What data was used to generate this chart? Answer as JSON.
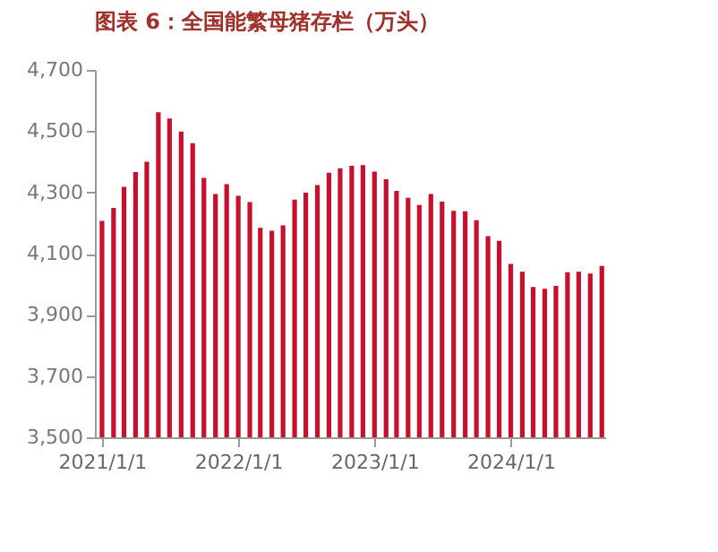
{
  "chart_data": {
    "type": "bar",
    "title": "图表 6：全国能繁母猪存栏（万头）",
    "x": [
      "2021-01",
      "2021-02",
      "2021-03",
      "2021-04",
      "2021-05",
      "2021-06",
      "2021-07",
      "2021-08",
      "2021-09",
      "2021-10",
      "2021-11",
      "2021-12",
      "2022-01",
      "2022-02",
      "2022-03",
      "2022-04",
      "2022-05",
      "2022-06",
      "2022-07",
      "2022-08",
      "2022-09",
      "2022-10",
      "2022-11",
      "2022-12",
      "2023-01",
      "2023-02",
      "2023-03",
      "2023-04",
      "2023-05",
      "2023-06",
      "2023-07",
      "2023-08",
      "2023-09",
      "2023-10",
      "2023-11",
      "2023-12",
      "2024-01",
      "2024-02",
      "2024-03",
      "2024-04",
      "2024-05",
      "2024-06",
      "2024-07",
      "2024-08",
      "2024-09"
    ],
    "values": [
      4207,
      4249,
      4318,
      4366,
      4400,
      4562,
      4541,
      4499,
      4461,
      4347,
      4295,
      4327,
      4289,
      4268,
      4184,
      4175,
      4192,
      4276,
      4299,
      4324,
      4364,
      4379,
      4387,
      4389,
      4368,
      4343,
      4305,
      4282,
      4259,
      4295,
      4270,
      4240,
      4238,
      4209,
      4157,
      4142,
      4066,
      4041,
      3991,
      3985,
      3995,
      4039,
      4041,
      4035,
      4060
    ],
    "color": "#c8102e",
    "xlim": [
      "2020-12-13",
      "2024-09-10"
    ],
    "xticks": [
      {
        "value": "2021-01-01",
        "label": "2021/1/1"
      },
      {
        "value": "2022-01-01",
        "label": "2022/1/1"
      },
      {
        "value": "2023-01-01",
        "label": "2023/1/1"
      },
      {
        "value": "2024-01-01",
        "label": "2024/1/1"
      }
    ],
    "ylim": [
      3500,
      4700
    ],
    "yticks": [
      {
        "value": 3500,
        "label": "3,500"
      },
      {
        "value": 3700,
        "label": "3,700"
      },
      {
        "value": 3900,
        "label": "3,900"
      },
      {
        "value": 4100,
        "label": "4,100"
      },
      {
        "value": 4300,
        "label": "4,300"
      },
      {
        "value": 4500,
        "label": "4,500"
      },
      {
        "value": 4700,
        "label": "4,700"
      }
    ]
  }
}
